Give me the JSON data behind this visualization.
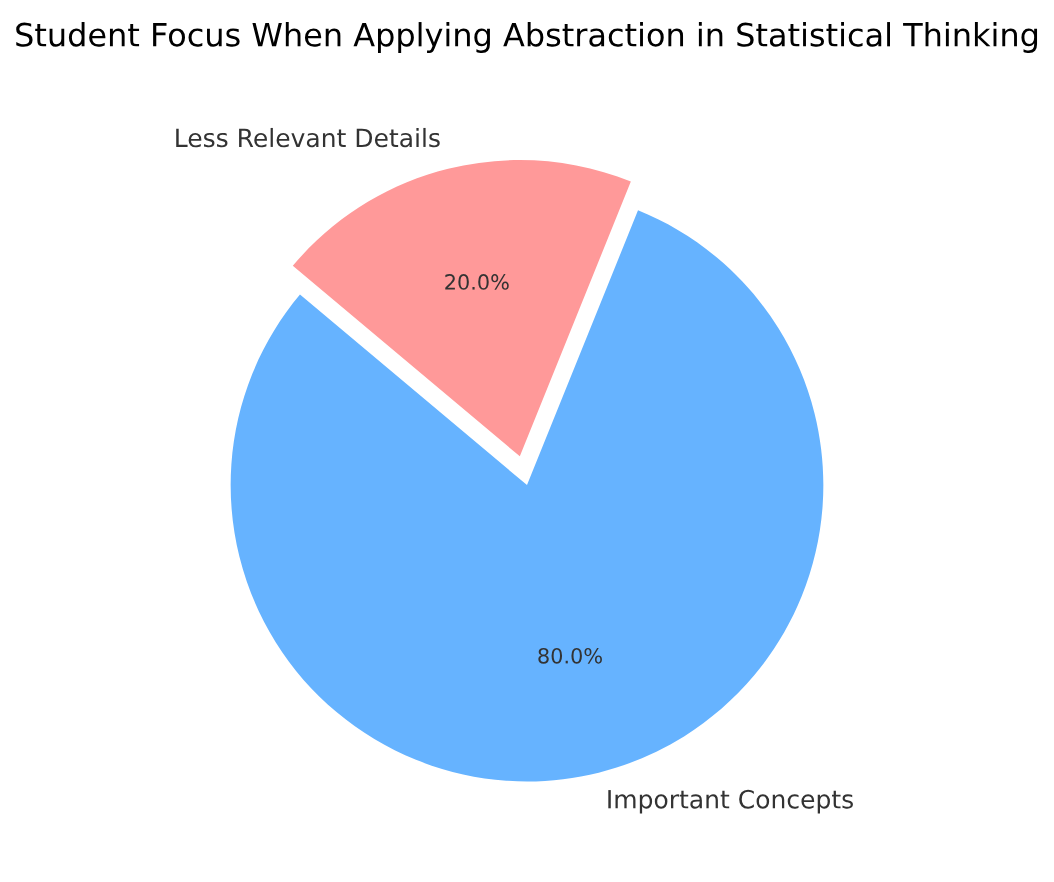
{
  "chart_data": {
    "type": "pie",
    "title": "Student Focus When Applying Abstraction in Statistical Thinking",
    "categories": [
      "Important Concepts",
      "Less Relevant Details"
    ],
    "values": [
      80,
      20
    ],
    "value_labels": [
      "80.0%",
      "20.0%"
    ],
    "colors": [
      "#66b3ff",
      "#ff9999"
    ]
  }
}
